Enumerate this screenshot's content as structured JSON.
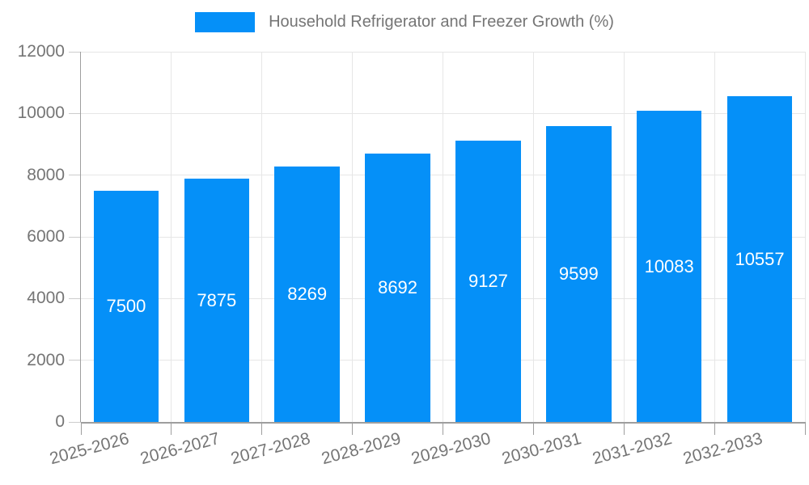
{
  "chart_data": {
    "type": "bar",
    "legend": "Household Refrigerator and Freezer Growth (%)",
    "legend_position": "top",
    "categories": [
      "2025-2026",
      "2026-2027",
      "2027-2028",
      "2028-2029",
      "2029-2030",
      "2030-2031",
      "2031-2032",
      "2032-2033"
    ],
    "values": [
      7500,
      7875,
      8269,
      8692,
      9127,
      9599,
      10083,
      10557
    ],
    "xlabel": "",
    "ylabel": "",
    "ylim": [
      0,
      12000
    ],
    "yticks": [
      0,
      2000,
      4000,
      6000,
      8000,
      10000,
      12000
    ],
    "grid": true,
    "colors": {
      "bar": "#0590f8",
      "value_label": "#ffffff",
      "axis_text": "#757575",
      "gridline": "#e6e6e6",
      "axis_line": "#9e9e9e"
    }
  }
}
